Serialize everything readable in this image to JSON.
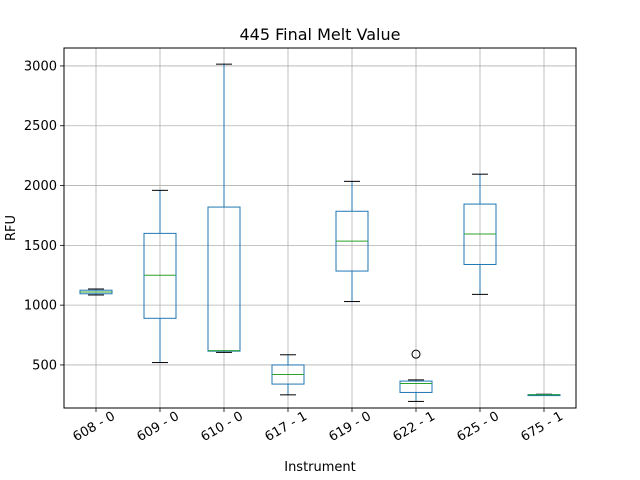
{
  "chart_data": {
    "type": "box",
    "title": "445 Final Melt Value",
    "xlabel": "Instrument",
    "ylabel": "RFU",
    "ylim": [
      140,
      3150
    ],
    "yticks": [
      500,
      1000,
      1500,
      2000,
      2500,
      3000
    ],
    "grid": true,
    "categories": [
      "608 - 0",
      "609 - 0",
      "610 - 0",
      "617 - 1",
      "619 - 0",
      "622 - 1",
      "625 - 0",
      "675 - 1"
    ],
    "boxes": [
      {
        "category": "608 - 0",
        "whisker_low": 1085,
        "q1": 1095,
        "median": 1110,
        "q3": 1125,
        "whisker_high": 1135,
        "outliers": []
      },
      {
        "category": "609 - 0",
        "whisker_low": 520,
        "q1": 890,
        "median": 1250,
        "q3": 1600,
        "whisker_high": 1960,
        "outliers": []
      },
      {
        "category": "610 - 0",
        "whisker_low": 605,
        "q1": 615,
        "median": 620,
        "q3": 1820,
        "whisker_high": 3015,
        "outliers": []
      },
      {
        "category": "617 - 1",
        "whisker_low": 250,
        "q1": 340,
        "median": 420,
        "q3": 500,
        "whisker_high": 585,
        "outliers": []
      },
      {
        "category": "619 - 0",
        "whisker_low": 1030,
        "q1": 1285,
        "median": 1535,
        "q3": 1785,
        "whisker_high": 2035,
        "outliers": []
      },
      {
        "category": "622 - 1",
        "whisker_low": 195,
        "q1": 270,
        "median": 345,
        "q3": 365,
        "whisker_high": 375,
        "outliers": [
          590
        ]
      },
      {
        "category": "625 - 0",
        "whisker_low": 1090,
        "q1": 1340,
        "median": 1595,
        "q3": 1845,
        "whisker_high": 2095,
        "outliers": []
      },
      {
        "category": "675 - 1",
        "whisker_low": 245,
        "q1": 248,
        "median": 250,
        "q3": 252,
        "whisker_high": 255,
        "outliers": []
      }
    ],
    "colors": {
      "box": "#1f77b4",
      "median": "#2ca02c",
      "cap": "#000000",
      "grid": "#b0b0b0",
      "outlier": "#000000"
    }
  }
}
